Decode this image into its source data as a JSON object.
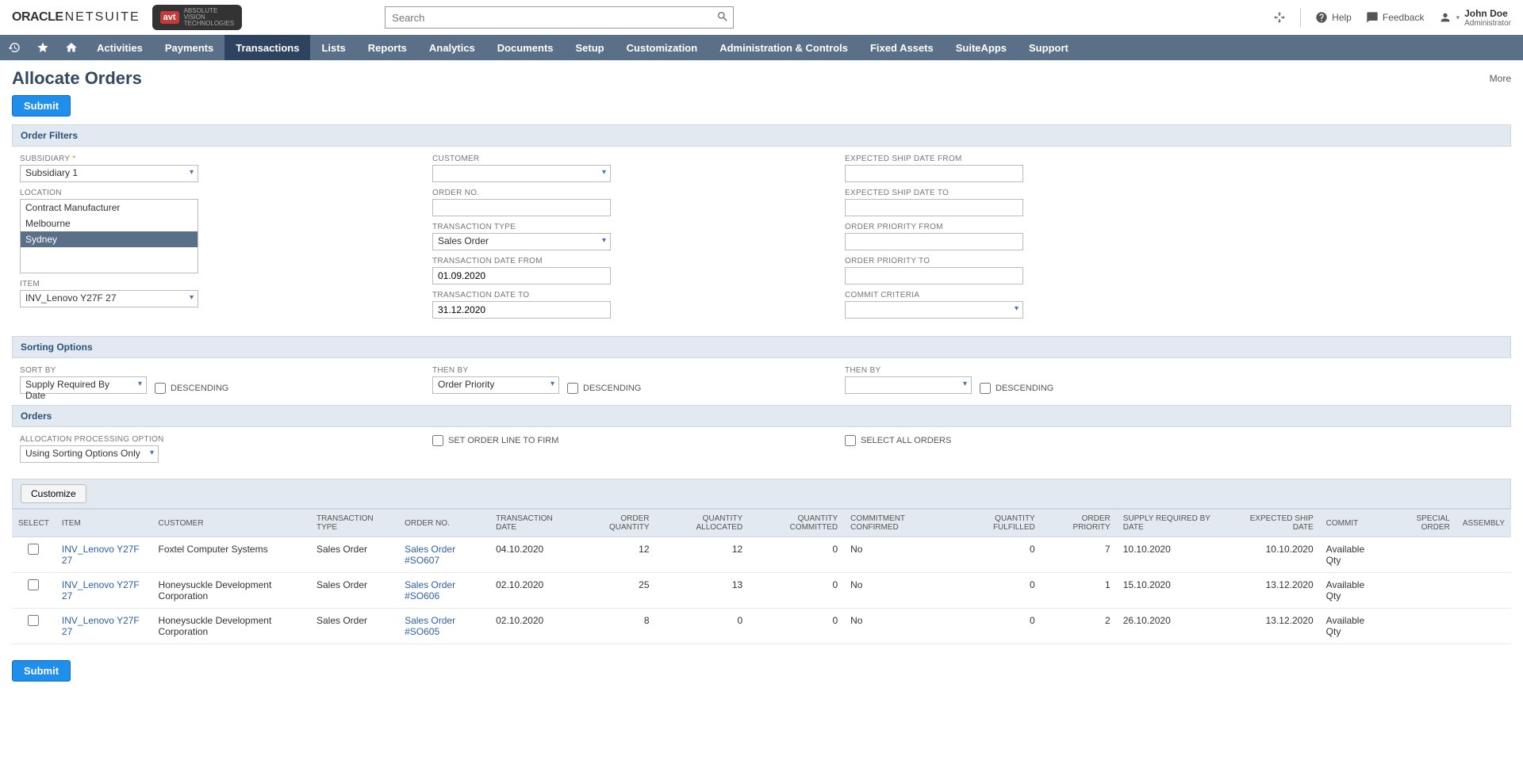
{
  "header": {
    "logo_oracle": "ORACLE",
    "logo_netsuite": "NETSUITE",
    "logo_avt": "avt",
    "logo_avt_sub1": "ABSOLUTE",
    "logo_avt_sub2": "VISION",
    "logo_avt_sub3": "TECHNOLOGIES",
    "search_placeholder": "Search",
    "help": "Help",
    "feedback": "Feedback",
    "user_name": "John Doe",
    "user_role": "Administrator"
  },
  "nav": {
    "items": [
      "Activities",
      "Payments",
      "Transactions",
      "Lists",
      "Reports",
      "Analytics",
      "Documents",
      "Setup",
      "Customization",
      "Administration & Controls",
      "Fixed Assets",
      "SuiteApps",
      "Support"
    ],
    "active_index": 2
  },
  "page": {
    "title": "Allocate Orders",
    "more": "More",
    "submit": "Submit"
  },
  "sections": {
    "filters": "Order Filters",
    "sorting": "Sorting Options",
    "orders": "Orders",
    "customize": "Customize"
  },
  "filters": {
    "subsidiary_label": "SUBSIDIARY",
    "subsidiary_value": "Subsidiary 1",
    "location_label": "LOCATION",
    "location_options": [
      "Contract Manufacturer",
      "Melbourne",
      "Sydney"
    ],
    "location_selected": "Sydney",
    "item_label": "ITEM",
    "item_value": "INV_Lenovo Y27F 27",
    "customer_label": "CUSTOMER",
    "customer_value": "",
    "orderno_label": "ORDER NO.",
    "orderno_value": "",
    "trantype_label": "TRANSACTION TYPE",
    "trantype_value": "Sales Order",
    "trandate_from_label": "TRANSACTION DATE FROM",
    "trandate_from_value": "01.09.2020",
    "trandate_to_label": "TRANSACTION DATE TO",
    "trandate_to_value": "31.12.2020",
    "shipfrom_label": "EXPECTED SHIP DATE FROM",
    "shipfrom_value": "",
    "shipto_label": "EXPECTED SHIP DATE TO",
    "shipto_value": "",
    "priofrom_label": "ORDER PRIORITY FROM",
    "priofrom_value": "",
    "prioto_label": "ORDER PRIORITY TO",
    "prioto_value": "",
    "commit_label": "COMMIT CRITERIA",
    "commit_value": ""
  },
  "sorting": {
    "sortby_label": "SORT BY",
    "sortby_value": "Supply Required By Date",
    "thenby1_label": "THEN BY",
    "thenby1_value": "Order Priority",
    "thenby2_label": "THEN BY",
    "thenby2_value": "",
    "descending": "DESCENDING"
  },
  "orders_section": {
    "alloc_label": "ALLOCATION PROCESSING OPTION",
    "alloc_value": "Using Sorting Options Only",
    "firm_label": "SET ORDER LINE TO FIRM",
    "selectall_label": "SELECT ALL ORDERS"
  },
  "table": {
    "cols": {
      "select": "SELECT",
      "item": "ITEM",
      "customer": "CUSTOMER",
      "ttype": "TRANSACTION TYPE",
      "orderno": "ORDER NO.",
      "tdate": "TRANSACTION DATE",
      "oqty": "ORDER QUANTITY",
      "qalloc": "QUANTITY ALLOCATED",
      "qcomm": "QUANTITY COMMITTED",
      "cconf": "COMMITMENT CONFIRMED",
      "qfulf": "QUANTITY FULFILLED",
      "oprio": "ORDER PRIORITY",
      "supply": "SUPPLY REQUIRED BY DATE",
      "expship": "EXPECTED SHIP DATE",
      "commit": "COMMIT",
      "special": "SPECIAL ORDER",
      "assembly": "ASSEMBLY"
    },
    "rows": [
      {
        "item": "INV_Lenovo Y27F 27",
        "customer": "Foxtel Computer Systems",
        "ttype": "Sales Order",
        "orderno": "Sales Order #SO607",
        "tdate": "04.10.2020",
        "oqty": "12",
        "qalloc": "12",
        "qcomm": "0",
        "cconf": "No",
        "qfulf": "0",
        "oprio": "7",
        "supply": "10.10.2020",
        "expship": "10.10.2020",
        "commit": "Available Qty",
        "special": "",
        "assembly": ""
      },
      {
        "item": "INV_Lenovo Y27F 27",
        "customer": "Honeysuckle Development Corporation",
        "ttype": "Sales Order",
        "orderno": "Sales Order #SO606",
        "tdate": "02.10.2020",
        "oqty": "25",
        "qalloc": "13",
        "qcomm": "0",
        "cconf": "No",
        "qfulf": "0",
        "oprio": "1",
        "supply": "15.10.2020",
        "expship": "13.12.2020",
        "commit": "Available Qty",
        "special": "",
        "assembly": ""
      },
      {
        "item": "INV_Lenovo Y27F 27",
        "customer": "Honeysuckle Development Corporation",
        "ttype": "Sales Order",
        "orderno": "Sales Order #SO605",
        "tdate": "02.10.2020",
        "oqty": "8",
        "qalloc": "0",
        "qcomm": "0",
        "cconf": "No",
        "qfulf": "0",
        "oprio": "2",
        "supply": "26.10.2020",
        "expship": "13.12.2020",
        "commit": "Available Qty",
        "special": "",
        "assembly": ""
      }
    ]
  }
}
